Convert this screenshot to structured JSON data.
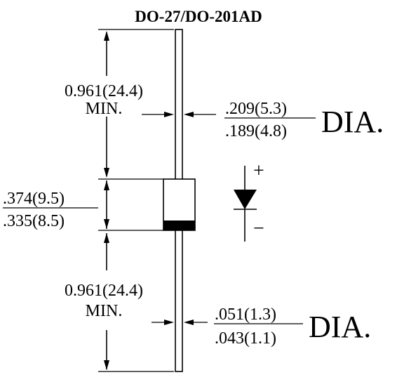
{
  "title": "DO-27/DO-201AD",
  "top_lead_length": {
    "value": "0.961(24.4)",
    "note": "MIN."
  },
  "bottom_lead_length": {
    "value": "0.961(24.4)",
    "note": "MIN."
  },
  "body_length": {
    "max": ".374(9.5)",
    "min": ".335(8.5)"
  },
  "body_diameter": {
    "max": ".209(5.3)",
    "min": ".189(4.8)",
    "unit": "DIA."
  },
  "lead_diameter": {
    "max": ".051(1.3)",
    "min": ".043(1.1)",
    "unit": "DIA."
  },
  "polarity": {
    "plus": "+",
    "minus": "−"
  }
}
